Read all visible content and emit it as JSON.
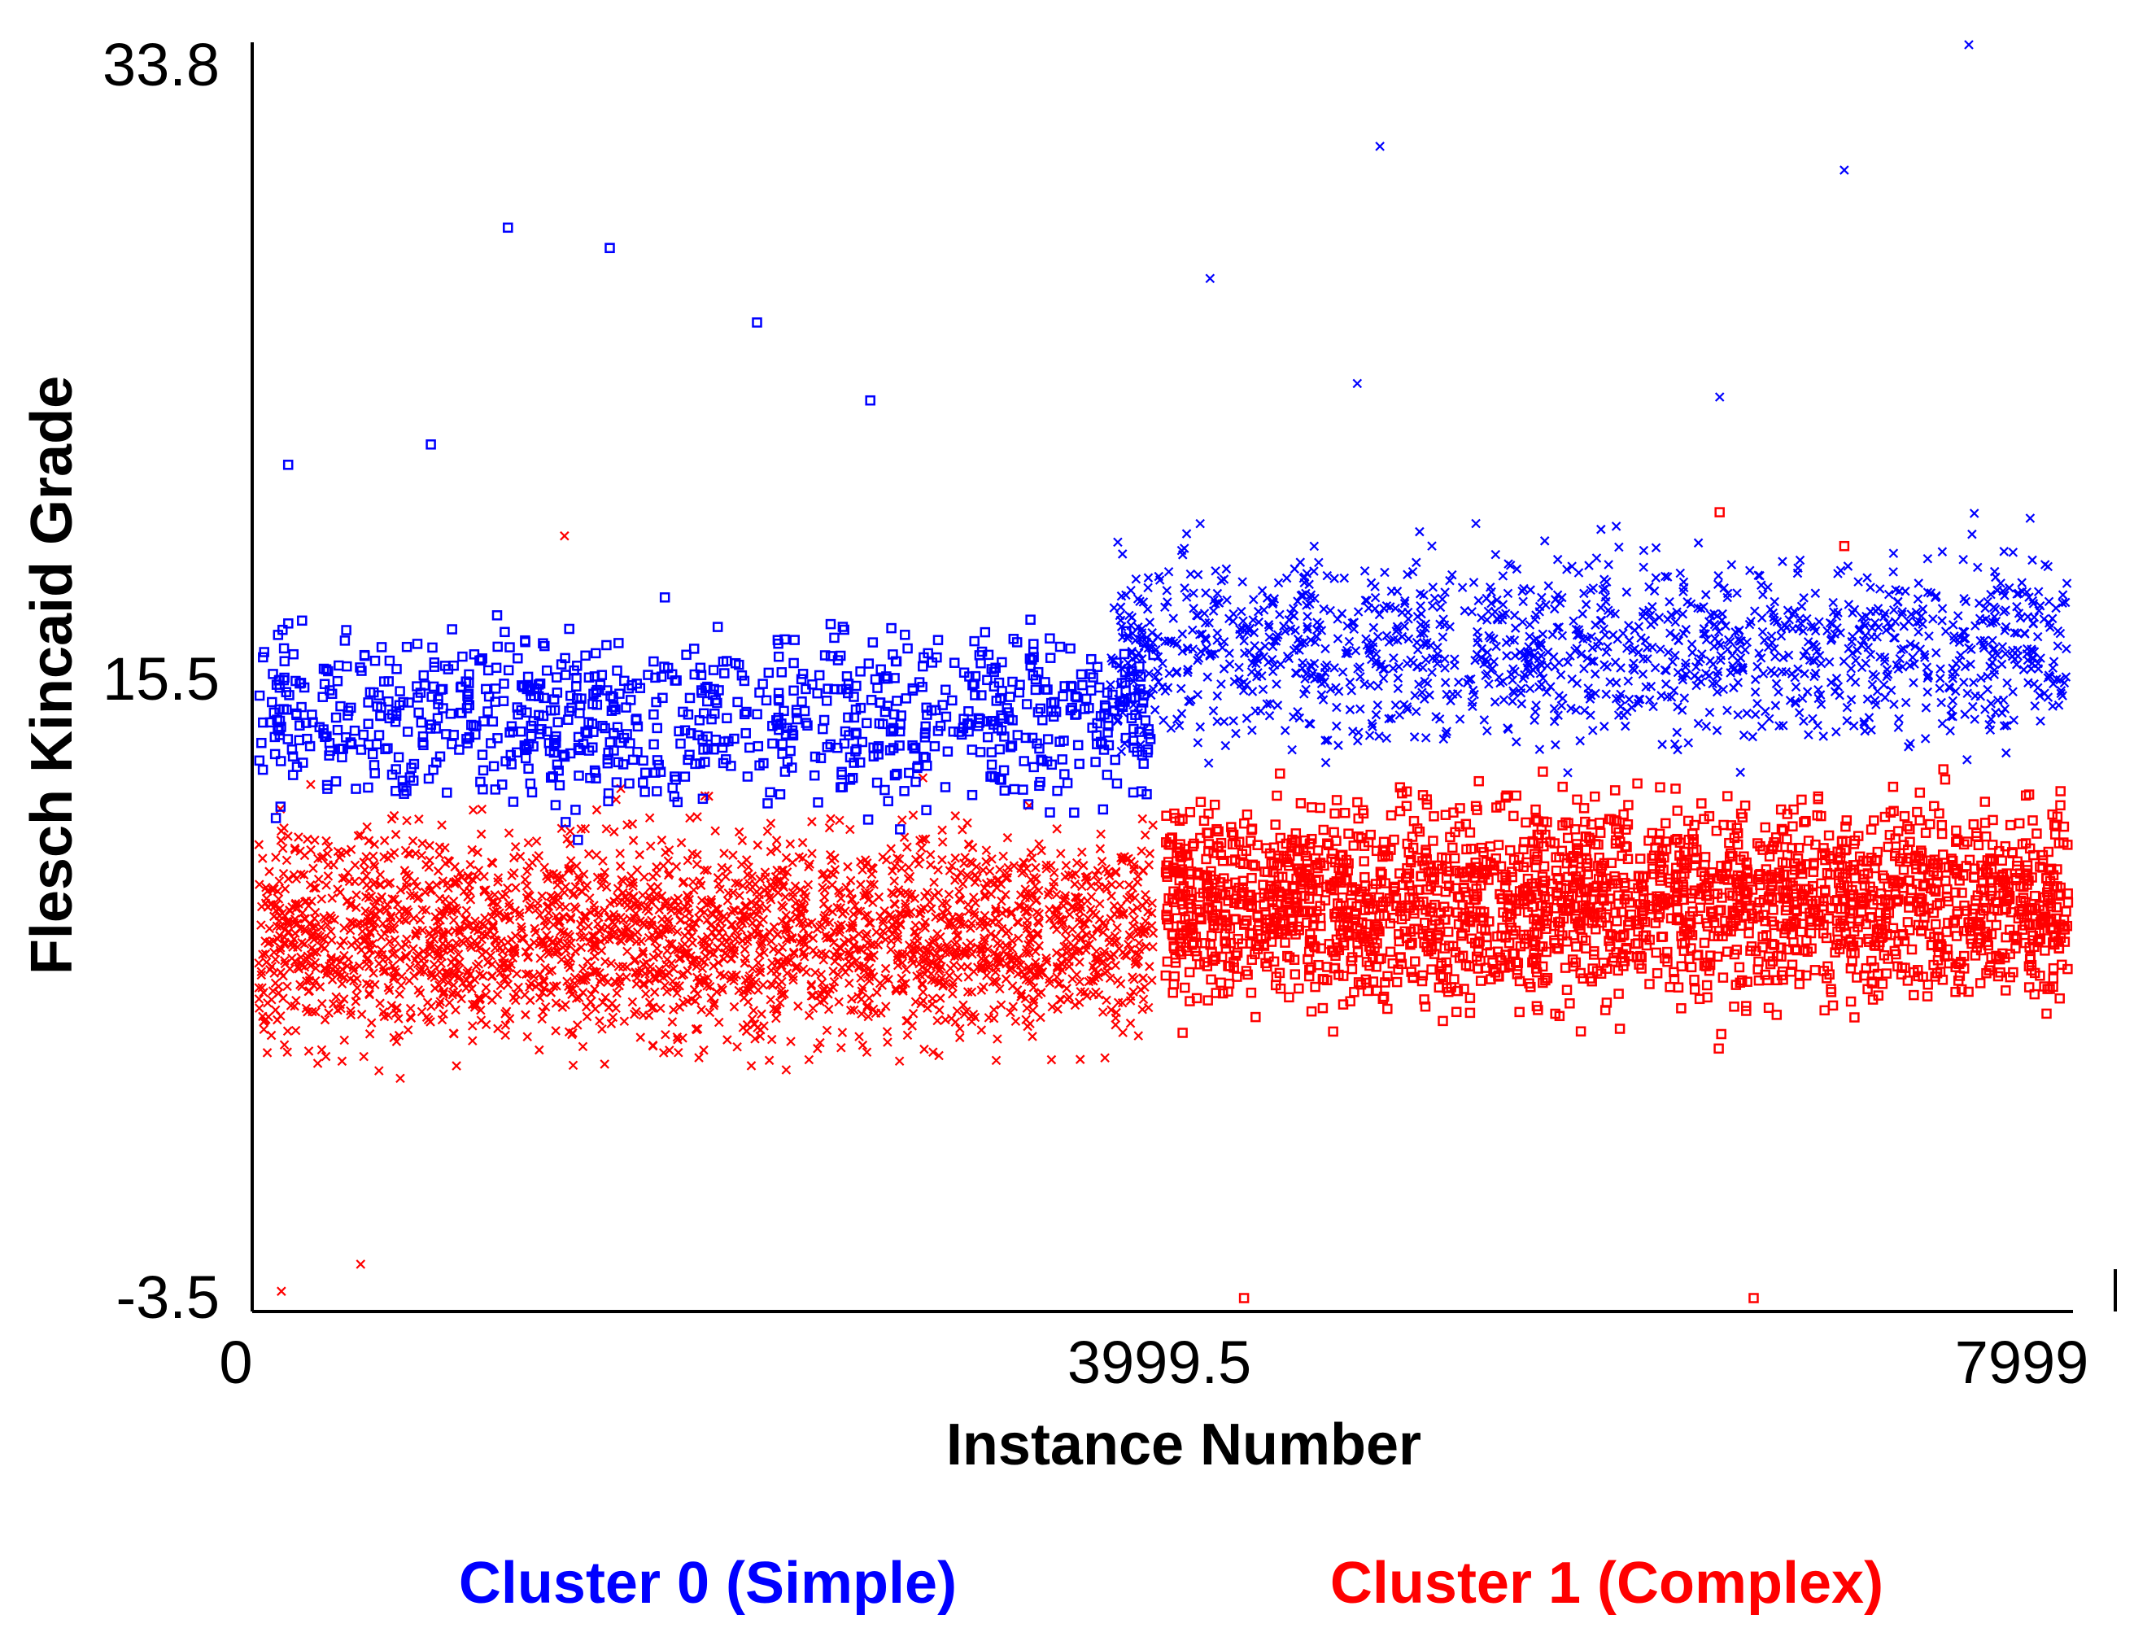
{
  "chart_data": {
    "type": "scatter",
    "title": "",
    "xlabel": "Instance Number",
    "ylabel": "Flesch Kincaid Grade",
    "xlim": [
      0,
      7999
    ],
    "ylim": [
      -3.5,
      33.8
    ],
    "x_ticks": [
      "0",
      "3999.5",
      "7999"
    ],
    "y_ticks": [
      "-3.5",
      "15.5",
      "33.8"
    ],
    "grid": false,
    "legend_position": "bottom",
    "markers": {
      "square": "predicted cluster shown as square",
      "cross": "predicted cluster shown as x"
    },
    "series": [
      {
        "name": "Cluster 0 (Simple)",
        "color": "#0000ff",
        "description_points": [
          {
            "x": 1100,
            "y": 28.4,
            "marker": "square"
          },
          {
            "x": 1550,
            "y": 27.8,
            "marker": "square"
          },
          {
            "x": 2200,
            "y": 25.6,
            "marker": "square"
          },
          {
            "x": 2700,
            "y": 23.3,
            "marker": "square"
          },
          {
            "x": 130,
            "y": 21.4,
            "marker": "square"
          },
          {
            "x": 760,
            "y": 22.0,
            "marker": "square"
          },
          {
            "x": 4950,
            "y": 30.8,
            "marker": "cross"
          },
          {
            "x": 7000,
            "y": 30.1,
            "marker": "cross"
          },
          {
            "x": 7550,
            "y": 33.8,
            "marker": "cross"
          },
          {
            "x": 4200,
            "y": 26.9,
            "marker": "cross"
          },
          {
            "x": 4850,
            "y": 23.8,
            "marker": "cross"
          },
          {
            "x": 6450,
            "y": 23.4,
            "marker": "cross"
          }
        ],
        "y_band_left": [
          10,
          21
        ],
        "y_band_right": [
          11,
          25
        ]
      },
      {
        "name": "Cluster 1 (Complex)",
        "color": "#ff0000",
        "description_points": [
          {
            "x": 1350,
            "y": 19.3,
            "marker": "cross"
          },
          {
            "x": 100,
            "y": -3.0,
            "marker": "cross"
          },
          {
            "x": 450,
            "y": -2.2,
            "marker": "cross"
          },
          {
            "x": 4350,
            "y": -3.2,
            "marker": "square"
          },
          {
            "x": 6600,
            "y": -3.2,
            "marker": "square"
          },
          {
            "x": 6450,
            "y": 20.0,
            "marker": "square"
          },
          {
            "x": 7000,
            "y": 19.0,
            "marker": "square"
          }
        ],
        "y_band_left": [
          0,
          15
        ],
        "y_band_right": [
          0,
          15
        ]
      }
    ]
  },
  "legend": {
    "cluster0_label": "Cluster 0 (Simple)",
    "cluster1_label": "Cluster 1 (Complex)",
    "cluster0_color": "#0000ff",
    "cluster1_color": "#ff0000"
  }
}
